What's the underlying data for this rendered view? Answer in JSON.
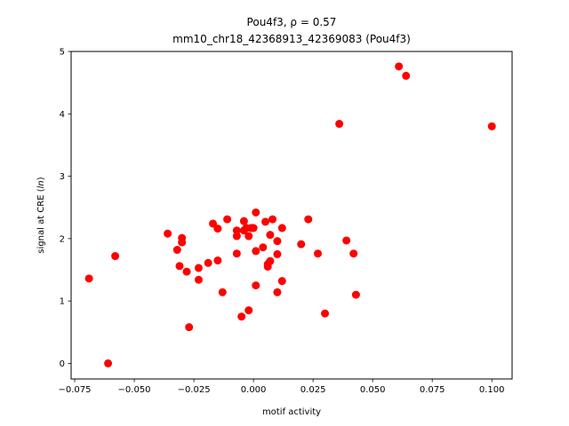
{
  "chart_data": {
    "type": "scatter",
    "title_line1": "Pou4f3, ρ = 0.57",
    "title_line2": "mm10_chr18_42368913_42369083 (Pou4f3)",
    "xlabel": "motif activity",
    "ylabel": "signal at CRE (ln)",
    "xlim": [
      -0.0765,
      0.1085
    ],
    "ylim": [
      -0.25,
      5.0
    ],
    "xticks": [
      -0.075,
      -0.05,
      -0.025,
      0.0,
      0.025,
      0.05,
      0.075,
      0.1
    ],
    "xtick_labels": [
      "−0.075",
      "−0.050",
      "−0.025",
      "0.000",
      "0.025",
      "0.050",
      "0.075",
      "0.100"
    ],
    "yticks": [
      0,
      1,
      2,
      3,
      4,
      5
    ],
    "ytick_labels": [
      "0",
      "1",
      "2",
      "3",
      "4",
      "5"
    ],
    "grid": false,
    "marker_color": "#ff0000",
    "points": [
      {
        "x": -0.069,
        "y": 1.36
      },
      {
        "x": -0.061,
        "y": 0.0
      },
      {
        "x": -0.058,
        "y": 1.72
      },
      {
        "x": -0.036,
        "y": 2.08
      },
      {
        "x": -0.032,
        "y": 1.82
      },
      {
        "x": -0.031,
        "y": 1.56
      },
      {
        "x": -0.03,
        "y": 1.94
      },
      {
        "x": -0.03,
        "y": 2.01
      },
      {
        "x": -0.028,
        "y": 1.47
      },
      {
        "x": -0.027,
        "y": 0.58
      },
      {
        "x": -0.023,
        "y": 1.34
      },
      {
        "x": -0.023,
        "y": 1.53
      },
      {
        "x": -0.019,
        "y": 1.61
      },
      {
        "x": -0.017,
        "y": 2.24
      },
      {
        "x": -0.015,
        "y": 2.16
      },
      {
        "x": -0.015,
        "y": 1.65
      },
      {
        "x": -0.013,
        "y": 1.14
      },
      {
        "x": -0.011,
        "y": 2.31
      },
      {
        "x": -0.007,
        "y": 2.04
      },
      {
        "x": -0.007,
        "y": 2.13
      },
      {
        "x": -0.007,
        "y": 1.76
      },
      {
        "x": -0.005,
        "y": 0.75
      },
      {
        "x": -0.004,
        "y": 2.13
      },
      {
        "x": -0.004,
        "y": 2.28
      },
      {
        "x": -0.003,
        "y": 2.17
      },
      {
        "x": -0.002,
        "y": 0.85
      },
      {
        "x": -0.002,
        "y": 2.04
      },
      {
        "x": -0.001,
        "y": 2.17
      },
      {
        "x": 0.0,
        "y": 2.17
      },
      {
        "x": 0.001,
        "y": 1.8
      },
      {
        "x": 0.001,
        "y": 2.42
      },
      {
        "x": 0.001,
        "y": 1.25
      },
      {
        "x": 0.004,
        "y": 1.86
      },
      {
        "x": 0.005,
        "y": 2.27
      },
      {
        "x": 0.006,
        "y": 1.55
      },
      {
        "x": 0.006,
        "y": 1.59
      },
      {
        "x": 0.007,
        "y": 1.64
      },
      {
        "x": 0.007,
        "y": 2.06
      },
      {
        "x": 0.008,
        "y": 2.31
      },
      {
        "x": 0.01,
        "y": 1.75
      },
      {
        "x": 0.01,
        "y": 1.14
      },
      {
        "x": 0.01,
        "y": 1.96
      },
      {
        "x": 0.012,
        "y": 2.17
      },
      {
        "x": 0.012,
        "y": 1.32
      },
      {
        "x": 0.02,
        "y": 1.91
      },
      {
        "x": 0.023,
        "y": 2.31
      },
      {
        "x": 0.027,
        "y": 1.76
      },
      {
        "x": 0.03,
        "y": 0.8
      },
      {
        "x": 0.036,
        "y": 3.84
      },
      {
        "x": 0.039,
        "y": 1.97
      },
      {
        "x": 0.042,
        "y": 1.76
      },
      {
        "x": 0.043,
        "y": 1.1
      },
      {
        "x": 0.061,
        "y": 4.76
      },
      {
        "x": 0.064,
        "y": 4.61
      },
      {
        "x": 0.1,
        "y": 3.8
      }
    ]
  }
}
